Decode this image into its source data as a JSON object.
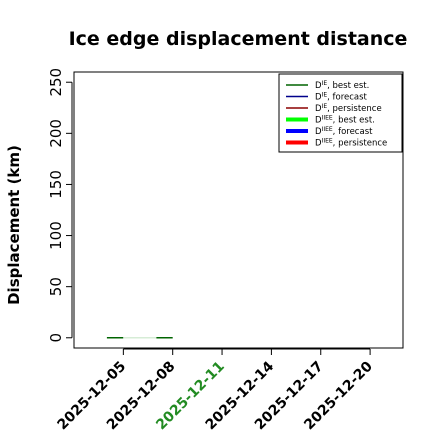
{
  "chart_data": {
    "type": "line",
    "title": "Ice edge displacement distance",
    "ylabel": "Displacement (km)",
    "xlabel": "",
    "ylim": [
      -10,
      260
    ],
    "yticks": [
      0,
      50,
      100,
      150,
      200,
      250
    ],
    "xlim": [
      "2025-12-02",
      "2025-12-22"
    ],
    "xticks": [
      {
        "label": "2025-12-05",
        "color": "#000000"
      },
      {
        "label": "2025-12-08",
        "color": "#000000"
      },
      {
        "label": "2025-12-11",
        "color": "#228b22"
      },
      {
        "label": "2025-12-14",
        "color": "#000000"
      },
      {
        "label": "2025-12-17",
        "color": "#000000"
      },
      {
        "label": "2025-12-20",
        "color": "#000000"
      }
    ],
    "legend_position": "top-right",
    "legend": [
      {
        "main": "D",
        "sup": "IE",
        "suffix": ", best est.",
        "color": "#006400",
        "width": 1.5
      },
      {
        "main": "D",
        "sup": "IE",
        "suffix": ", forecast",
        "color": "#00008b",
        "width": 1.5
      },
      {
        "main": "D",
        "sup": "IE",
        "suffix": ", persistence",
        "color": "#8b0000",
        "width": 1.5
      },
      {
        "main": "D",
        "sup": "IIEE",
        "suffix": ", best est.",
        "color": "#00ff00",
        "width": 4
      },
      {
        "main": "D",
        "sup": "IIEE",
        "suffix": ", forecast",
        "color": "#0000ff",
        "width": 4
      },
      {
        "main": "D",
        "sup": "IIEE",
        "suffix": ", persistence",
        "color": "#ff0000",
        "width": 4
      }
    ],
    "series": [
      {
        "color": "#006400",
        "width": 1.5,
        "segments": [
          [
            [
              "2025-12-04",
              0
            ],
            [
              "2025-12-05",
              0
            ]
          ],
          [
            [
              "2025-12-07",
              0
            ],
            [
              "2025-12-08",
              0
            ]
          ]
        ]
      },
      {
        "color": "#c8e6c8",
        "width": 1.2,
        "segments": [
          [
            [
              "2025-12-05",
              0
            ],
            [
              "2025-12-07",
              0
            ]
          ]
        ]
      }
    ]
  }
}
